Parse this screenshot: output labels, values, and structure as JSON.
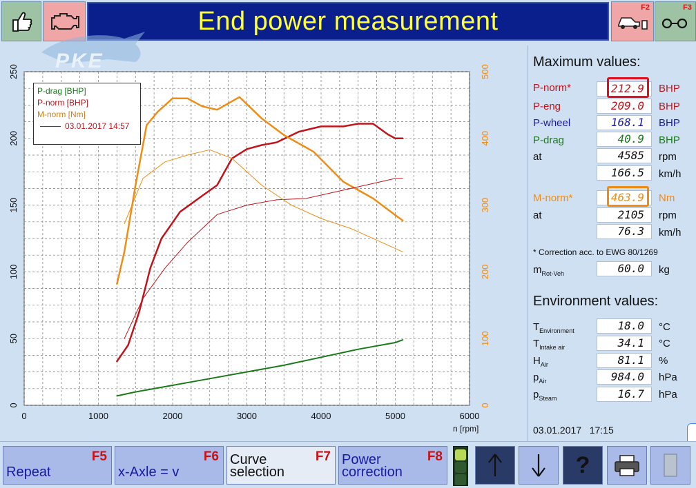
{
  "header": {
    "title": "End power measurement",
    "f2_key": "F2",
    "f3_key": "F3"
  },
  "watermark": "PKE",
  "chart_data": {
    "type": "line",
    "xlabel": "n [rpm]",
    "xlim": [
      0,
      6000
    ],
    "ylim_left": [
      0,
      250
    ],
    "ylim_right": [
      0,
      500
    ],
    "x_ticks": [
      "0",
      "1000",
      "2000",
      "3000",
      "4000",
      "5000",
      "6000"
    ],
    "y_ticks_left": [
      "0",
      "50",
      "100",
      "150",
      "200",
      "250"
    ],
    "y_ticks_right": [
      "0",
      "100",
      "200",
      "300",
      "400",
      "500"
    ],
    "grid": true,
    "legend_position": "top-left",
    "legend": [
      "P-drag [BHP]",
      "P-norm [BHP]",
      "M-norm [Nm]"
    ],
    "reference_label": "03.01.2017 14:57",
    "series": [
      {
        "name": "P-drag [BHP]",
        "axis": "left",
        "color": "#1a7a1a",
        "width": 2,
        "x": [
          1250,
          1500,
          2000,
          2500,
          3000,
          3500,
          4000,
          4500,
          5000,
          5100
        ],
        "y": [
          7,
          10,
          15,
          20,
          25,
          30,
          36,
          42,
          47,
          49
        ]
      },
      {
        "name": "P-norm [BHP]",
        "axis": "left",
        "color": "#c0141a",
        "width": 2.5,
        "x": [
          1250,
          1400,
          1550,
          1700,
          1850,
          2100,
          2400,
          2600,
          2800,
          3000,
          3200,
          3400,
          3700,
          4000,
          4300,
          4500,
          4700,
          4900,
          5000,
          5100
        ],
        "y": [
          33,
          45,
          70,
          103,
          125,
          145,
          157,
          165,
          185,
          192,
          195,
          197,
          205,
          209,
          209,
          211,
          211,
          203,
          200,
          200
        ]
      },
      {
        "name": "M-norm [Nm]",
        "axis": "right",
        "color": "#f08c14",
        "width": 2.5,
        "x": [
          1250,
          1350,
          1500,
          1650,
          1800,
          2000,
          2200,
          2400,
          2600,
          2900,
          3200,
          3500,
          3900,
          4300,
          4700,
          5000,
          5100
        ],
        "y": [
          182,
          230,
          330,
          420,
          440,
          460,
          460,
          448,
          443,
          462,
          430,
          405,
          380,
          335,
          310,
          285,
          277
        ]
      },
      {
        "name": "",
        "axis": "left",
        "color": "#c0141a",
        "width": 1,
        "reference": true,
        "x": [
          1350,
          1600,
          1900,
          2200,
          2600,
          3000,
          3400,
          3800,
          4200,
          4600,
          5000,
          5100
        ],
        "y": [
          50,
          80,
          103,
          122,
          143,
          150,
          154,
          155,
          160,
          165,
          170,
          170
        ]
      },
      {
        "name": "",
        "axis": "right",
        "color": "#f08c14",
        "width": 1,
        "reference": true,
        "x": [
          1350,
          1600,
          1900,
          2200,
          2500,
          2800,
          3200,
          3600,
          4000,
          4400,
          4800,
          5100
        ],
        "y": [
          272,
          340,
          365,
          375,
          383,
          370,
          330,
          300,
          280,
          265,
          245,
          230
        ]
      }
    ]
  },
  "max_values": {
    "heading": "Maximum values:",
    "p_norm": {
      "label": "P-norm*",
      "value": "212.9",
      "unit": "BHP"
    },
    "p_eng": {
      "label": "P-eng",
      "value": "209.0",
      "unit": "BHP"
    },
    "p_wheel": {
      "label": "P-wheel",
      "value": "168.1",
      "unit": "BHP"
    },
    "p_drag": {
      "label": "P-drag",
      "value": "40.9",
      "unit": "BHP"
    },
    "at1": {
      "label": "at",
      "value": "4585",
      "unit": "rpm"
    },
    "speed1": {
      "value": "166.5",
      "unit": "km/h"
    },
    "m_norm": {
      "label": "M-norm*",
      "value": "463.9",
      "unit": "Nm"
    },
    "at2": {
      "label": "at",
      "value": "2105",
      "unit": "rpm"
    },
    "speed2": {
      "value": "76.3",
      "unit": "km/h"
    },
    "note": "* Correction acc. to EWG 80/1269",
    "m_rot": {
      "label": "m",
      "sub": "Rot-Veh",
      "value": "60.0",
      "unit": "kg"
    }
  },
  "environment": {
    "heading": "Environment values:",
    "t_env": {
      "label": "T",
      "sub": "Environment",
      "value": "18.0",
      "unit": "°C"
    },
    "t_intake": {
      "label": "T",
      "sub": "Intake air",
      "value": "34.1",
      "unit": "°C"
    },
    "h_air": {
      "label": "H",
      "sub": "Air",
      "value": "81.1",
      "unit": "%"
    },
    "p_air": {
      "label": "p",
      "sub": "Air",
      "value": "984.0",
      "unit": "hPa"
    },
    "p_steam": {
      "label": "p",
      "sub": "Steam",
      "value": "16.7",
      "unit": "hPa"
    }
  },
  "timestamp": {
    "date": "03.01.2017",
    "time": "17:15"
  },
  "toolbar": {
    "repeat": {
      "label": "Repeat",
      "key": "F5"
    },
    "x_axle": {
      "label": "x-Axle = v",
      "key": "F6"
    },
    "curve": {
      "label1": "Curve",
      "label2": "selection",
      "key": "F7"
    },
    "power": {
      "label1": "Power",
      "label2": "correction",
      "key": "F8"
    }
  },
  "colors": {
    "title_bg": "#0a1f8c",
    "title_text": "#ffff3a",
    "p_norm": "#c0141a",
    "p_wheel": "#1a1aa0",
    "p_drag": "#1a7a1a",
    "m_norm": "#f08c14"
  }
}
